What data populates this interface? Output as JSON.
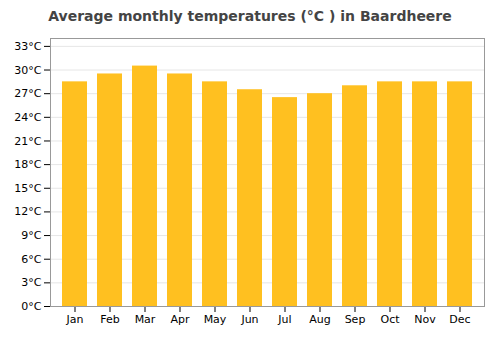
{
  "chart_data": {
    "type": "bar",
    "title": "Average monthly temperatures (°C ) in Baardheere",
    "categories": [
      "Jan",
      "Feb",
      "Mar",
      "Apr",
      "May",
      "Jun",
      "Jul",
      "Aug",
      "Sep",
      "Oct",
      "Nov",
      "Dec"
    ],
    "values": [
      28.5,
      29.5,
      30.5,
      29.5,
      28.5,
      27.5,
      26.5,
      27.0,
      28.0,
      28.5,
      28.5,
      28.5
    ],
    "color": "#FFC020",
    "ylim": [
      0,
      34
    ],
    "yticks": [
      {
        "value": 0,
        "label": "0°C"
      },
      {
        "value": 3,
        "label": "3°C"
      },
      {
        "value": 6,
        "label": "6°C"
      },
      {
        "value": 9,
        "label": "9°C"
      },
      {
        "value": 12,
        "label": "12°C"
      },
      {
        "value": 15,
        "label": "15°C"
      },
      {
        "value": 18,
        "label": "18°C"
      },
      {
        "value": 21,
        "label": "21°C"
      },
      {
        "value": 24,
        "label": "24°C"
      },
      {
        "value": 27,
        "label": "27°C"
      },
      {
        "value": 30,
        "label": "30°C"
      },
      {
        "value": 33,
        "label": "33°C"
      }
    ],
    "grid": true
  }
}
